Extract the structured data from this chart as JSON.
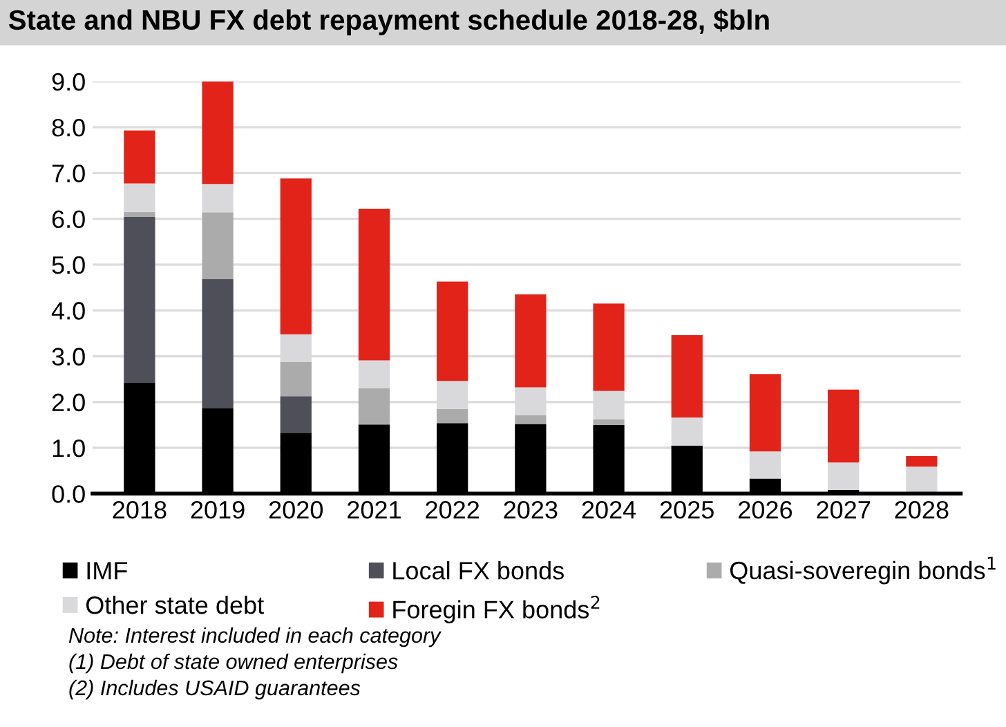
{
  "chart_data": {
    "type": "bar",
    "stacked": true,
    "title": "State and NBU FX debt repayment schedule 2018-28, $bln",
    "categories": [
      "2018",
      "2019",
      "2020",
      "2021",
      "2022",
      "2023",
      "2024",
      "2025",
      "2026",
      "2027",
      "2028"
    ],
    "series": [
      {
        "name": "IMF",
        "color": "#000000",
        "values": [
          2.42,
          1.86,
          1.33,
          1.51,
          1.54,
          1.52,
          1.5,
          1.05,
          0.33,
          0.08,
          0
        ]
      },
      {
        "name": "Local FX bonds",
        "color": "#4f4f5a",
        "values": [
          3.62,
          2.83,
          0.8,
          0,
          0,
          0,
          0,
          0,
          0,
          0,
          0
        ]
      },
      {
        "name": "Quasi-soveregin bonds$^{1}$",
        "color": "#ababab",
        "values": [
          0.11,
          1.45,
          0.74,
          0.79,
          0.31,
          0.19,
          0.12,
          null,
          null,
          0,
          0
        ]
      },
      {
        "name": "Other state debt",
        "color": "#d9d9db",
        "values": [
          0.62,
          0.62,
          0.61,
          0.61,
          0.61,
          0.61,
          0.62,
          0.61,
          0.59,
          0.6,
          0.59
        ]
      },
      {
        "name": "Foregin FX bonds$^{2}$",
        "color": "#e2231a",
        "values": [
          1.16,
          2.24,
          3.4,
          3.31,
          2.17,
          2.03,
          1.91,
          1.8,
          1.69,
          1.59,
          0.23
        ]
      }
    ],
    "ylim": [
      0,
      9
    ],
    "yticks": [
      {
        "value": 0,
        "label": "0.0"
      },
      {
        "value": 1,
        "label": "1.0"
      },
      {
        "value": 2,
        "label": "2.0"
      },
      {
        "value": 3,
        "label": "3.0"
      },
      {
        "value": 4,
        "label": "4.0"
      },
      {
        "value": 5,
        "label": "5.0"
      },
      {
        "value": 6,
        "label": "6.0"
      },
      {
        "value": 7,
        "label": "7.0"
      },
      {
        "value": 8,
        "label": "8.0"
      },
      {
        "value": 9,
        "label": "9.0"
      }
    ],
    "grid": "y",
    "legend": "bottom",
    "annotations": [
      "Note: Interest included in each category",
      "(1) Debt of state owned enterprises",
      "(2) Includes USAID guarantees"
    ]
  }
}
